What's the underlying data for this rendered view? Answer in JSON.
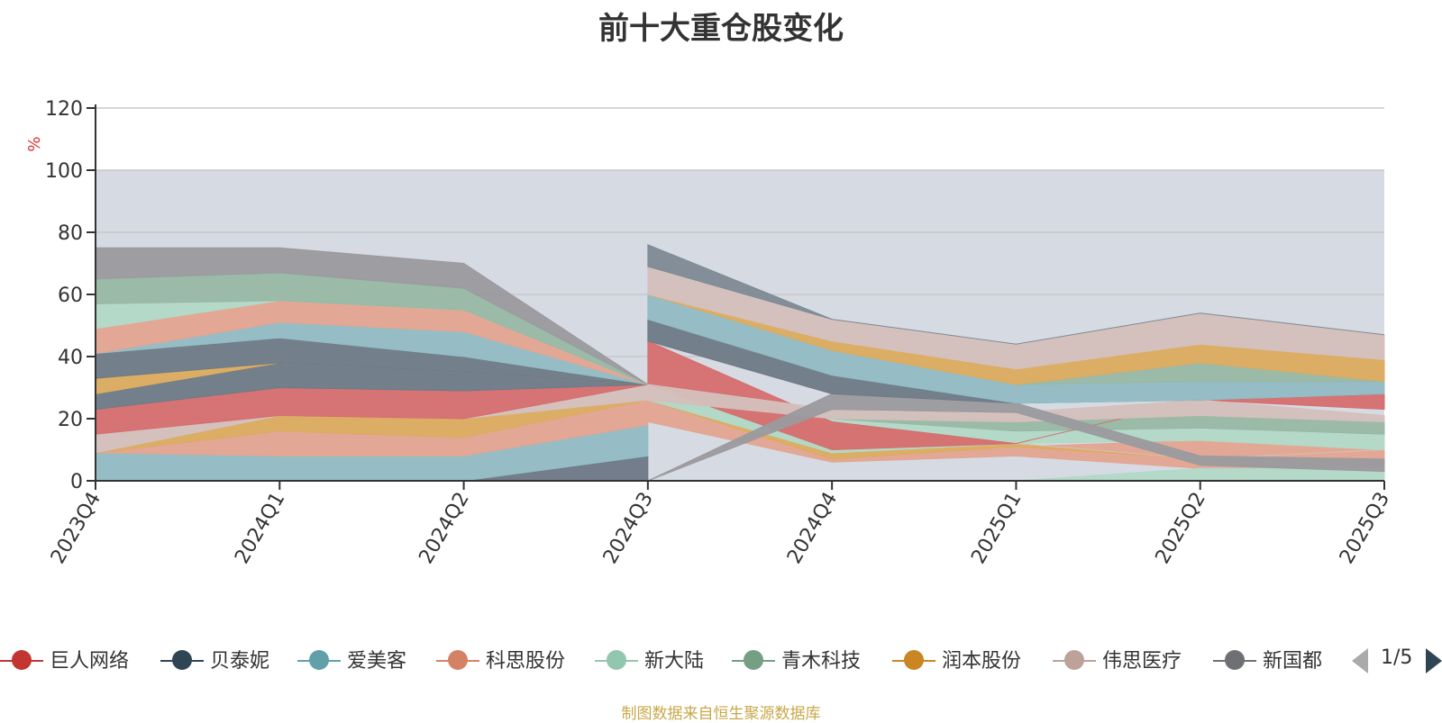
{
  "chart_data": {
    "type": "area",
    "title": "前十大重仓股变化",
    "ylabel": "%",
    "xlabel": "",
    "ylim": [
      0,
      120
    ],
    "yticks": [
      0,
      20,
      40,
      60,
      80,
      100,
      120
    ],
    "categories": [
      "2023Q4",
      "2024Q1",
      "2024Q2",
      "2024Q3",
      "2024Q4",
      "2025Q1",
      "2025Q2",
      "2025Q3"
    ],
    "band": [
      0,
      100
    ],
    "band_color": "#d6dbe3",
    "layers": [
      {
        "name": "",
        "color": "#6e7886",
        "values": [
          0.0,
          0.0,
          0.0,
          8.0,
          0.0,
          0.0,
          0.0,
          0.0
        ]
      },
      {
        "name": "",
        "color": "#92bcc3",
        "values": [
          9.0,
          8.0,
          8.0,
          10.0,
          6.0,
          6.0,
          0.0,
          0.0
        ]
      },
      {
        "name": "",
        "color": "#e3a590",
        "values": [
          0.0,
          8.0,
          6.0,
          8.0,
          1.0,
          0.0,
          4.0,
          3.0
        ]
      },
      {
        "name": "",
        "color": "#dcab5e",
        "values": [
          0.0,
          5.0,
          6.0,
          0.0,
          2.0,
          4.0,
          0.0,
          0.0
        ]
      },
      {
        "name": "",
        "color": "#d4c0bc",
        "values": [
          6.0,
          0.0,
          0.0,
          5.0,
          0.0,
          0.0,
          0.0,
          0.0
        ]
      },
      {
        "name": "",
        "color": "#d66e6e",
        "values": [
          8.0,
          9.0,
          9.0,
          0.0,
          0.0,
          0.0,
          0.0,
          4.0
        ]
      },
      {
        "name": "",
        "color": "#6e7a86",
        "values": [
          5.0,
          8.0,
          6.0,
          0.0,
          0.0,
          0.0,
          0.0,
          0.0
        ]
      },
      {
        "name": "",
        "color": "#dcab5e",
        "values": [
          5.0,
          0.0,
          0.0,
          0.0,
          0.0,
          0.0,
          0.0,
          0.0
        ]
      },
      {
        "name": "",
        "color": "#6e7a86",
        "values": [
          8.0,
          8.0,
          5.0,
          0.0,
          0.0,
          0.0,
          0.0,
          0.0
        ]
      },
      {
        "name": "",
        "color": "#92bcc3",
        "values": [
          0.0,
          5.0,
          8.0,
          0.0,
          0.0,
          0.0,
          0.0,
          0.0
        ]
      },
      {
        "name": "",
        "color": "#e3a590",
        "values": [
          8.0,
          7.0,
          7.0,
          0.0,
          0.0,
          0.0,
          0.0,
          0.0
        ]
      },
      {
        "name": "",
        "color": "#b2d9c7",
        "values": [
          8.0,
          0.0,
          0.0,
          0.0,
          0.0,
          0.0,
          0.0,
          0.0
        ]
      },
      {
        "name": "",
        "color": "#98b8a4",
        "values": [
          8.0,
          9.0,
          7.0,
          0.0,
          0.0,
          0.0,
          0.0,
          0.0
        ]
      },
      {
        "name": "",
        "color": "#d4c0bc",
        "values": [
          0.0,
          0.0,
          0.0,
          0.0,
          0.0,
          0.0,
          0.0,
          0.0
        ]
      },
      {
        "name": "",
        "color": "#9a9a9e",
        "values": [
          10.0,
          8.0,
          8.0,
          0.0,
          0.0,
          0.0,
          0.0,
          0.0
        ]
      },
      {
        "name": "",
        "color": "#dcab5e",
        "values": [
          0.0,
          0.0,
          0.0,
          0.0,
          0.0,
          0.0,
          0.0,
          0.0
        ]
      },
      {
        "name": "",
        "color": "#d4c0bc",
        "values": [
          0.0,
          0.0,
          0.0,
          0.0,
          0.0,
          0.0,
          0.0,
          0.0
        ]
      },
      {
        "name": "",
        "color": "#92bcc3",
        "values": [
          0.0,
          0.0,
          0.0,
          0.0,
          0.0,
          0.0,
          0.0,
          0.0
        ]
      },
      {
        "name": "",
        "color": "#6e7a86",
        "values": [
          0.0,
          0.0,
          0.0,
          0.0,
          0.0,
          0.0,
          0.0,
          0.0
        ]
      }
    ],
    "late_layers": [
      {
        "name": "",
        "color": "#e3a590",
        "values": [
          0,
          0,
          0,
          26.0,
          7.0,
          11.0,
          13.0,
          10.0
        ],
        "base": [
          0,
          0,
          0,
          19.0,
          6.0,
          8.0,
          4.0,
          3.0
        ]
      },
      {
        "name": "",
        "color": "#b2d9c7",
        "values": [
          0,
          0,
          0,
          0,
          0,
          0,
          4.0,
          4.0
        ],
        "base": [
          0,
          0,
          0,
          0,
          0,
          0,
          0,
          0
        ]
      },
      {
        "name": "",
        "color": "#dcab5e",
        "values": [
          0,
          0,
          0,
          26.0,
          10.0,
          12.0,
          7.0,
          10.0
        ],
        "base": [
          0,
          0,
          0,
          26.0,
          7.0,
          11.0,
          7.0,
          10.0
        ]
      },
      {
        "name": "",
        "color": "#d4c0bc",
        "values": [
          0,
          0,
          0,
          31.0,
          10.0,
          12.0,
          7.0,
          10.0
        ],
        "base": [
          0,
          0,
          0,
          26.0,
          10.0,
          12.0,
          7.0,
          10.0
        ]
      },
      {
        "name": "",
        "color": "#b2d9c7",
        "values": [
          0,
          0,
          0,
          26.0,
          20.0,
          16.0,
          17.0,
          15.0
        ],
        "base": [
          0,
          0,
          0,
          26.0,
          9.0,
          12.0,
          13.0,
          10.0
        ]
      },
      {
        "name": "",
        "color": "#98b8a4",
        "values": [
          0,
          0,
          0,
          26.0,
          23.0,
          19.0,
          21.0,
          19.0
        ],
        "base": [
          0,
          0,
          0,
          26.0,
          20.0,
          16.0,
          17.0,
          15.0
        ]
      },
      {
        "name": "",
        "color": "#d66e6e",
        "values": [
          0,
          0,
          0,
          45.0,
          19.0,
          12.0,
          26.0,
          28.0
        ],
        "base": [
          0,
          0,
          0,
          31.0,
          10.0,
          12.0,
          26.0,
          23.0
        ]
      },
      {
        "name": "",
        "color": "#d4c0bc",
        "values": [
          0,
          0,
          0,
          31.0,
          23.0,
          22.0,
          26.0,
          21.0
        ],
        "base": [
          0,
          0,
          0,
          26.0,
          20.0,
          19.0,
          21.0,
          19.0
        ]
      },
      {
        "name": "",
        "color": "#9a9a9e",
        "values": [
          0,
          0,
          0,
          0,
          28.0,
          25.0,
          8.0,
          7.0
        ],
        "base": [
          0,
          0,
          0,
          0,
          23.0,
          22.0,
          5.0,
          3.0
        ]
      },
      {
        "name": "",
        "color": "#6e7a86",
        "values": [
          0,
          0,
          0,
          52.0,
          34.0,
          25.0,
          26.0,
          28.0
        ],
        "base": [
          0,
          0,
          0,
          45.0,
          28.0,
          25.0,
          26.0,
          28.0
        ]
      },
      {
        "name": "",
        "color": "#92bcc3",
        "values": [
          0,
          0,
          0,
          60.0,
          42.0,
          31.0,
          32.0,
          32.0
        ],
        "base": [
          0,
          0,
          0,
          52.0,
          34.0,
          25.0,
          26.0,
          28.0
        ]
      },
      {
        "name": "",
        "color": "#98b8a4",
        "values": [
          0,
          0,
          0,
          60.0,
          42.0,
          31.0,
          38.0,
          32.0
        ],
        "base": [
          0,
          0,
          0,
          60.0,
          42.0,
          31.0,
          32.0,
          32.0
        ]
      },
      {
        "name": "",
        "color": "#dcab5e",
        "values": [
          0,
          0,
          0,
          60.0,
          45.0,
          36.0,
          44.0,
          39.0
        ],
        "base": [
          0,
          0,
          0,
          60.0,
          42.0,
          31.0,
          38.0,
          32.0
        ]
      },
      {
        "name": "",
        "color": "#d4c0bc",
        "values": [
          0,
          0,
          0,
          69.0,
          52.0,
          44.0,
          54.0,
          47.0
        ],
        "base": [
          0,
          0,
          0,
          60.0,
          45.0,
          36.0,
          44.0,
          39.0
        ]
      },
      {
        "name": "",
        "color": "#7f8a93",
        "values": [
          0,
          0,
          0,
          76.0,
          52.0,
          44.0,
          54.0,
          47.0
        ],
        "base": [
          0,
          0,
          0,
          69.0,
          52.0,
          44.0,
          54.0,
          47.0
        ]
      }
    ],
    "legend": [
      {
        "name": "巨人网络",
        "color": "#c23531"
      },
      {
        "name": "贝泰妮",
        "color": "#2f4554"
      },
      {
        "name": "爱美客",
        "color": "#61a0a8"
      },
      {
        "name": "科思股份",
        "color": "#d48265"
      },
      {
        "name": "新大陆",
        "color": "#91c7ae"
      },
      {
        "name": "青木科技",
        "color": "#749f83"
      },
      {
        "name": "润本股份",
        "color": "#ca8622"
      },
      {
        "name": "伟思医疗",
        "color": "#bda29a"
      },
      {
        "name": "新国都",
        "color": "#6e7074"
      }
    ],
    "legend_page": "1/5",
    "source_note": "制图数据来自恒生聚源数据库"
  }
}
